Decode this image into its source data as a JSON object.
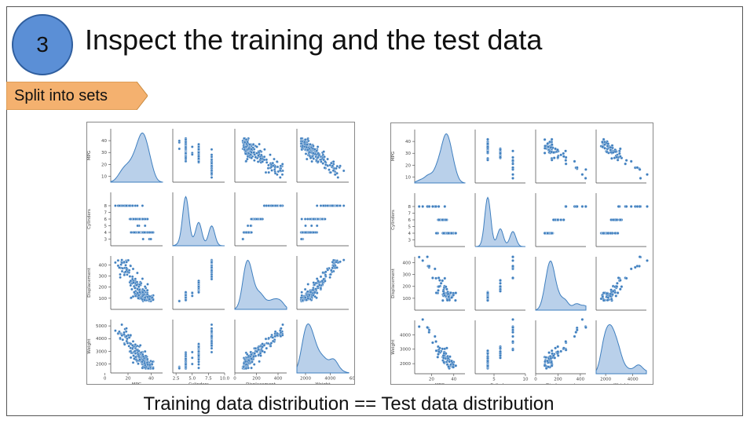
{
  "slide": {
    "step_number": "3",
    "title": "Inspect the training and the test data",
    "tag_label": "Split into sets",
    "caption": "Training data distribution == Test data distribution"
  },
  "colors": {
    "badge_fill": "#5b8fd6",
    "tag_fill": "#f4b16f",
    "point": "#3f7fbf",
    "kde_fill": "#b9d0ea"
  },
  "chart_data": [
    {
      "type": "scatter",
      "variant": "pairplot",
      "title": "",
      "variables": [
        "MPG",
        "Cylinders",
        "Displacement",
        "Weight"
      ],
      "axis_labels": [
        "MPG",
        "Cylinders",
        "Displacement",
        "Weight"
      ],
      "ranges": {
        "MPG": [
          5,
          50
        ],
        "Cylinders": [
          2,
          10
        ],
        "Displacement": [
          0,
          480
        ],
        "Weight": [
          1300,
          5500
        ]
      },
      "y_ticks": {
        "MPG": [
          10,
          20,
          30,
          40
        ],
        "Cylinders": [
          3,
          4,
          5,
          6,
          7,
          8
        ],
        "Displacement": [
          100,
          200,
          300,
          400
        ],
        "Weight": [
          2000,
          3000,
          4000,
          5000
        ]
      },
      "x_ticks": {
        "MPG": [
          0,
          20,
          40
        ],
        "Cylinders": [
          2.5,
          5.0,
          7.5,
          10.0
        ],
        "Displacement": [
          0,
          200,
          400
        ],
        "Weight": [
          2000,
          4000,
          6000
        ]
      },
      "x_tick_labels": {
        "MPG": [
          "0",
          "20",
          "40"
        ],
        "Cylinders": [
          "2.5",
          "5.0",
          "7.5",
          "10.0"
        ],
        "Displacement": [
          "0",
          "200",
          "400"
        ],
        "Weight": [
          "2000",
          "4000",
          "6000"
        ]
      },
      "n_points": 200,
      "grid": false
    },
    {
      "type": "scatter",
      "variant": "pairplot",
      "title": "",
      "variables": [
        "MPG",
        "Cylinders",
        "Displacement",
        "Weight"
      ],
      "axis_labels": [
        "MPG",
        "Cylinders",
        "Displacement",
        "Weight"
      ],
      "ranges": {
        "MPG": [
          5,
          50
        ],
        "Cylinders": [
          2,
          10
        ],
        "Displacement": [
          0,
          450
        ],
        "Weight": [
          1300,
          5000
        ]
      },
      "y_ticks": {
        "MPG": [
          10,
          20,
          30,
          40
        ],
        "Cylinders": [
          3,
          4,
          5,
          6,
          7,
          8
        ],
        "Displacement": [
          100,
          200,
          300,
          400
        ],
        "Weight": [
          2000,
          3000,
          4000
        ]
      },
      "x_ticks": {
        "MPG": [
          20,
          40
        ],
        "Cylinders": [
          5,
          10
        ],
        "Displacement": [
          0,
          200,
          400
        ],
        "Weight": [
          2000,
          4000,
          6000
        ]
      },
      "x_tick_labels": {
        "MPG": [
          "20",
          "40"
        ],
        "Cylinders": [
          "5",
          "10"
        ],
        "Displacement": [
          "0",
          "200",
          "400"
        ],
        "Weight": [
          "2000",
          "4000",
          "6000"
        ]
      },
      "n_points": 60,
      "grid": false
    }
  ]
}
